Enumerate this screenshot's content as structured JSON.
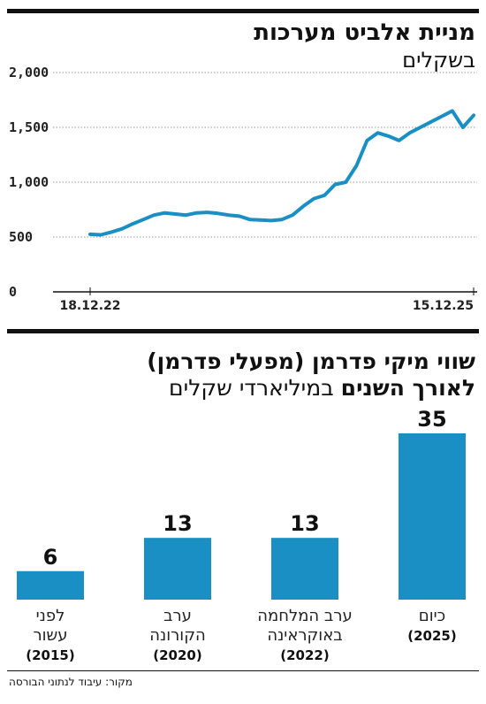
{
  "chart1": {
    "title": "מניית אלביט מערכות",
    "subtitle": "בשקלים",
    "chart_data": {
      "type": "line",
      "title": "מניית אלביט מערכות",
      "subtitle": "בשקלים",
      "ylim": [
        0,
        2000
      ],
      "yticks": [
        "2,000",
        "1,500",
        "1,000",
        "500",
        "0"
      ],
      "ytick_values": [
        2000,
        1500,
        1000,
        500,
        0
      ],
      "x_start_label": "18.12.22",
      "x_end_label": "15.12.25",
      "x": [
        "2022-12",
        "2023-01",
        "2023-02",
        "2023-03",
        "2023-04",
        "2023-05",
        "2023-06",
        "2023-07",
        "2023-08",
        "2023-09",
        "2023-10",
        "2023-11",
        "2023-12",
        "2024-01",
        "2024-02",
        "2024-03",
        "2024-04",
        "2024-05",
        "2024-06",
        "2024-07",
        "2024-08",
        "2024-09",
        "2024-10",
        "2024-11",
        "2024-12",
        "2025-01",
        "2025-02",
        "2025-03",
        "2025-04",
        "2025-05",
        "2025-06",
        "2025-07",
        "2025-08",
        "2025-09",
        "2025-10",
        "2025-11",
        "2025-12"
      ],
      "values": [
        525,
        520,
        545,
        575,
        620,
        660,
        700,
        720,
        710,
        700,
        720,
        725,
        715,
        700,
        690,
        660,
        655,
        650,
        660,
        700,
        780,
        850,
        880,
        980,
        1000,
        1150,
        1380,
        1450,
        1420,
        1380,
        1450,
        1500,
        1550,
        1600,
        1650,
        1500,
        1610
      ],
      "color": "#1a8fc4"
    }
  },
  "chart2": {
    "title_line1": "שווי מיקי פדרמן (מפעלי פדרמן)",
    "title_line2_bold": "לאורך השנים",
    "title_line2_light": "במיליארדי שקלים",
    "chart_data": {
      "type": "bar",
      "title": "שווי מיקי פדרמן (מפעלי פדרמן) לאורך השנים במיליארדי שקלים",
      "categories": [
        "לפני עשור (2015)",
        "ערב הקורונה (2020)",
        "ערב המלחמה באוקראינה (2022)",
        "כיום (2025)"
      ],
      "values": [
        6,
        13,
        13,
        35
      ],
      "value_labels": [
        "6",
        "13",
        "13",
        "35"
      ],
      "label_lines": [
        [
          "לפני",
          "עשור"
        ],
        [
          "ערב",
          "הקורונה"
        ],
        [
          "ערב המלחמה",
          "באוקראינה"
        ],
        [
          "כיום"
        ]
      ],
      "years": [
        "(2015)",
        "(2020)",
        "(2022)",
        "(2025)"
      ],
      "color": "#1a8fc4"
    }
  },
  "source": "מקור: עיבוד לנתוני הבורסה"
}
